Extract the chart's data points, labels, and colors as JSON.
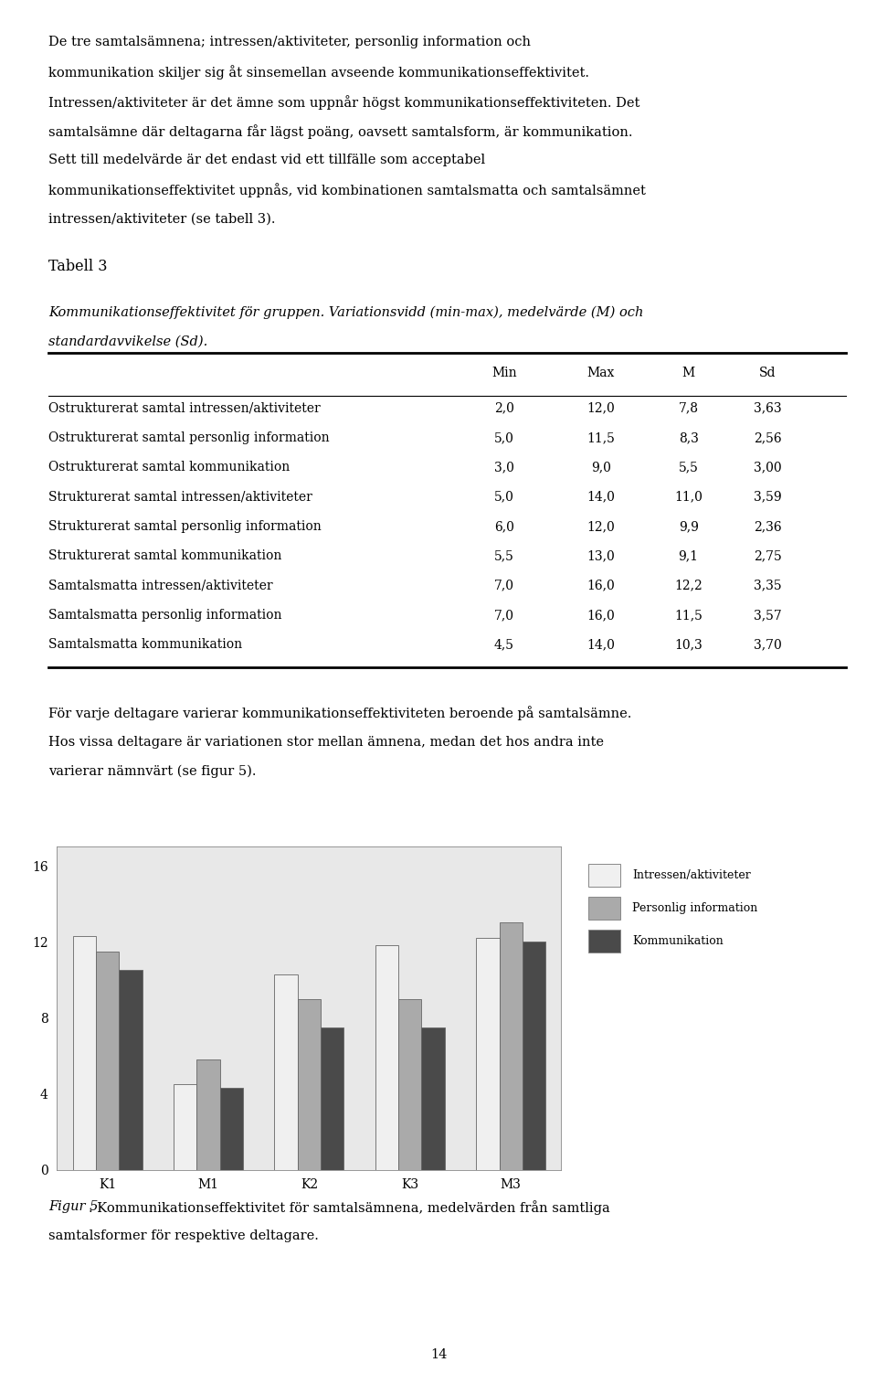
{
  "page_text_top": [
    "De tre samtalsämnena; intressen/aktiviteter, personlig information och",
    "kommunikation skiljer sig åt sinsemellan avseende kommunikationseffektivitet.",
    "Intressen/aktiviteter är det ämne som uppnår högst kommunikationseffektiviteten. Det",
    "samtalsämne där deltagarna får lägst poäng, oavsett samtalsform, är kommunikation.",
    "Sett till medelvärde är det endast vid ett tillfälle som acceptabel",
    "kommunikationseffektivitet uppnås, vid kombinationen samtalsmatta och samtalsämnet",
    "intressen/aktiviteter (se tabell 3)."
  ],
  "tabell_heading": "Tabell 3",
  "tabell_caption_line1": "Kommunikationseffektivitet för gruppen. Variationsvidd (min-max), medelvärde (M) och",
  "tabell_caption_line2": "standardavvikelse (Sd).",
  "table_headers": [
    "",
    "Min",
    "Max",
    "M",
    "Sd"
  ],
  "table_rows": [
    [
      "Ostrukturerat samtal intressen/aktiviteter",
      "2,0",
      "12,0",
      "7,8",
      "3,63"
    ],
    [
      "Ostrukturerat samtal personlig information",
      "5,0",
      "11,5",
      "8,3",
      "2,56"
    ],
    [
      "Ostrukturerat samtal kommunikation",
      "3,0",
      "9,0",
      "5,5",
      "3,00"
    ],
    [
      "Strukturerat samtal intressen/aktiviteter",
      "5,0",
      "14,0",
      "11,0",
      "3,59"
    ],
    [
      "Strukturerat samtal personlig information",
      "6,0",
      "12,0",
      "9,9",
      "2,36"
    ],
    [
      "Strukturerat samtal kommunikation",
      "5,5",
      "13,0",
      "9,1",
      "2,75"
    ],
    [
      "Samtalsmatta intressen/aktiviteter",
      "7,0",
      "16,0",
      "12,2",
      "3,35"
    ],
    [
      "Samtalsmatta personlig information",
      "7,0",
      "16,0",
      "11,5",
      "3,57"
    ],
    [
      "Samtalsmatta kommunikation",
      "4,5",
      "14,0",
      "10,3",
      "3,70"
    ]
  ],
  "paragraph_text": [
    "För varje deltagare varierar kommunikationseffektiviteten beroende på samtalsämne.",
    "Hos vissa deltagare är variationen stor mellan ämnena, medan det hos andra inte",
    "varierar nämnvärt (se figur 5)."
  ],
  "bar_groups": [
    "K1",
    "M1",
    "K2",
    "K3",
    "M3"
  ],
  "bar_data": {
    "intressen": [
      12.3,
      4.5,
      10.3,
      11.8,
      12.2
    ],
    "personlig": [
      11.5,
      5.8,
      9.0,
      9.0,
      13.0
    ],
    "kommunikation": [
      10.5,
      4.3,
      7.5,
      7.5,
      12.0
    ]
  },
  "bar_colors": {
    "intressen": "#f0f0f0",
    "personlig": "#aaaaaa",
    "kommunikation": "#4a4a4a"
  },
  "bar_edge_color": "#666666",
  "ylim": [
    0,
    17
  ],
  "yticks": [
    0,
    4,
    8,
    12,
    16
  ],
  "legend_labels": [
    "Intressen/aktiviteter",
    "Personlig information",
    "Kommunikation"
  ],
  "figure_caption_italic": "Figur 5",
  "figure_caption_rest": ". Kommunikationseffektivitet för samtalsämnena, medelvärden från samtliga",
  "figure_caption_line2": "samtalsformer för respektive deltagare.",
  "chart_bg_color": "#e8e8e8",
  "page_number": "14",
  "font_size_body": 10.5,
  "font_size_table": 10,
  "font_size_axis": 10
}
